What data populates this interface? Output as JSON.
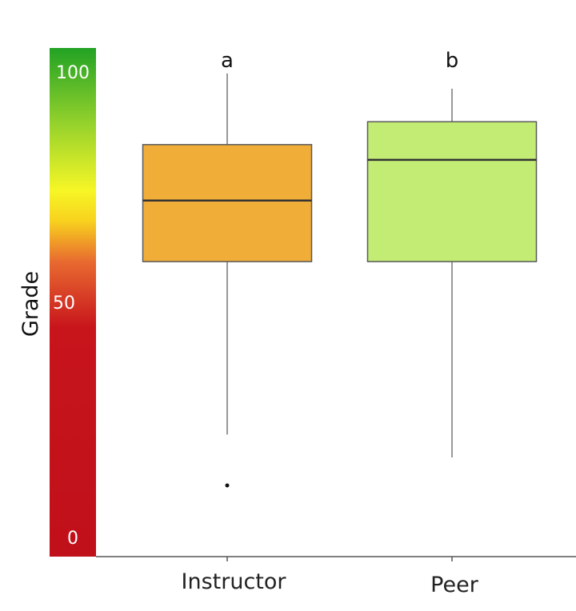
{
  "chart_data": {
    "type": "boxplot",
    "title": "",
    "xlabel": "",
    "ylabel": "Grade",
    "ylim": [
      0,
      100
    ],
    "yticks": [
      "0",
      "50",
      "100"
    ],
    "categories": [
      "Instructor",
      "Peer"
    ],
    "group_letters": [
      "a",
      "b"
    ],
    "boxes": [
      {
        "category": "Instructor",
        "whisker_low": 24,
        "q1": 58,
        "median": 70,
        "q3": 81,
        "whisker_high": 95,
        "outliers": [
          14
        ],
        "color": "#f0ad38"
      },
      {
        "category": "Peer",
        "whisker_low": 19.5,
        "q1": 58,
        "median": 78,
        "q3": 85.5,
        "whisker_high": 92,
        "outliers": [],
        "color": "#c3ec74"
      }
    ],
    "colorbar": {
      "stops": [
        {
          "value": 0,
          "color": "#c0101a"
        },
        {
          "value": 45,
          "color": "#c8151c"
        },
        {
          "value": 58,
          "color": "#e86a30"
        },
        {
          "value": 66,
          "color": "#f8d21e"
        },
        {
          "value": 72,
          "color": "#f6f626"
        },
        {
          "value": 85,
          "color": "#96d22c"
        },
        {
          "value": 100,
          "color": "#22a224"
        }
      ]
    }
  }
}
